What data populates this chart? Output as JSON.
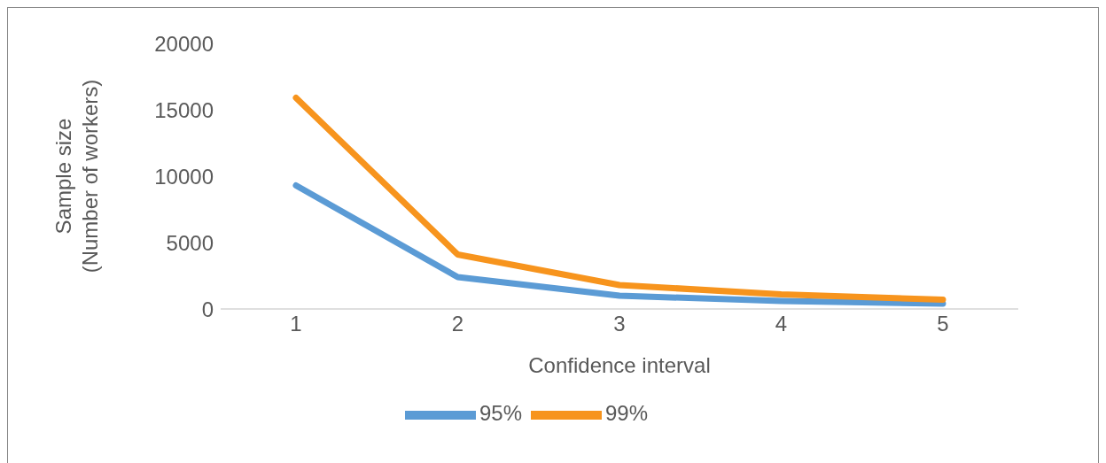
{
  "chart_data": {
    "type": "line",
    "xlabel": "Confidence interval",
    "ylabel": "Sample size\n(Number of workers)",
    "categories": [
      "1",
      "2",
      "3",
      "4",
      "5"
    ],
    "series": [
      {
        "name": "95%",
        "color": "#5b9bd5",
        "values": [
          9300,
          2400,
          1000,
          600,
          400
        ]
      },
      {
        "name": "99%",
        "color": "#f7941d",
        "values": [
          15900,
          4100,
          1800,
          1100,
          700
        ]
      }
    ],
    "ylim": [
      0,
      20000
    ],
    "yticks": [
      0,
      5000,
      10000,
      15000,
      20000
    ],
    "grid": false,
    "legend": "bottom",
    "marker": "none",
    "line_style": "solid"
  }
}
